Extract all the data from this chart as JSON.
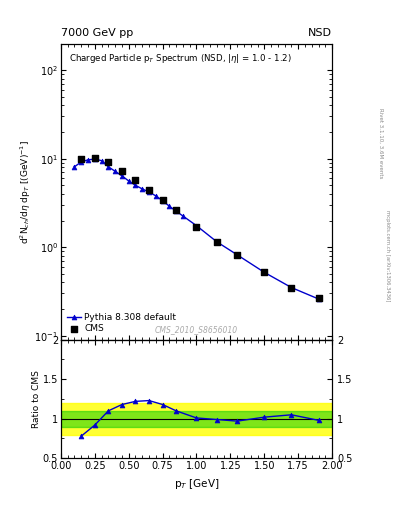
{
  "title_left": "7000 GeV pp",
  "title_right": "NSD",
  "ylabel_main": "d$^2$N$_{ch}$/d$\\eta$ dp$_T$ [(GeV)$^{-1}$]",
  "ylabel_ratio": "Ratio to CMS",
  "xlabel": "p$_T$ [GeV]",
  "main_title": "Charged Particle p$_T$ Spectrum (NSD, |$\\eta$| = 1.0 - 1.2)",
  "watermark": "CMS_2010_S8656010",
  "right_label_top": "Rivet 3.1.10, 3.6M events",
  "right_label_bot": "mcplots.cern.ch [arXiv:1306.3436]",
  "cms_x": [
    0.15,
    0.25,
    0.35,
    0.45,
    0.55,
    0.65,
    0.75,
    0.85,
    1.0,
    1.15,
    1.3,
    1.5,
    1.7,
    1.9
  ],
  "cms_y": [
    9.8,
    10.1,
    9.1,
    7.3,
    5.7,
    4.4,
    3.4,
    2.6,
    1.7,
    1.15,
    0.82,
    0.52,
    0.35,
    0.27
  ],
  "pythia_x": [
    0.1,
    0.15,
    0.2,
    0.25,
    0.3,
    0.35,
    0.4,
    0.45,
    0.5,
    0.55,
    0.6,
    0.65,
    0.7,
    0.75,
    0.8,
    0.85,
    0.9,
    1.0,
    1.15,
    1.3,
    1.5,
    1.7,
    1.9
  ],
  "pythia_y": [
    8.1,
    9.2,
    9.7,
    9.9,
    9.5,
    8.1,
    7.2,
    6.4,
    5.6,
    5.0,
    4.55,
    4.2,
    3.8,
    3.35,
    2.9,
    2.55,
    2.25,
    1.75,
    1.15,
    0.82,
    0.52,
    0.35,
    0.26
  ],
  "ratio_x": [
    0.15,
    0.25,
    0.35,
    0.45,
    0.55,
    0.65,
    0.75,
    0.85,
    1.0,
    1.15,
    1.3,
    1.5,
    1.7,
    1.9
  ],
  "ratio_y": [
    0.78,
    0.92,
    1.1,
    1.18,
    1.22,
    1.23,
    1.18,
    1.1,
    1.01,
    0.99,
    0.97,
    1.02,
    1.05,
    0.98
  ],
  "green_band_low": 0.9,
  "green_band_high": 1.1,
  "yellow_band_low": 0.8,
  "yellow_band_high": 1.2,
  "line_color": "#0000cc",
  "marker_color": "#000000"
}
